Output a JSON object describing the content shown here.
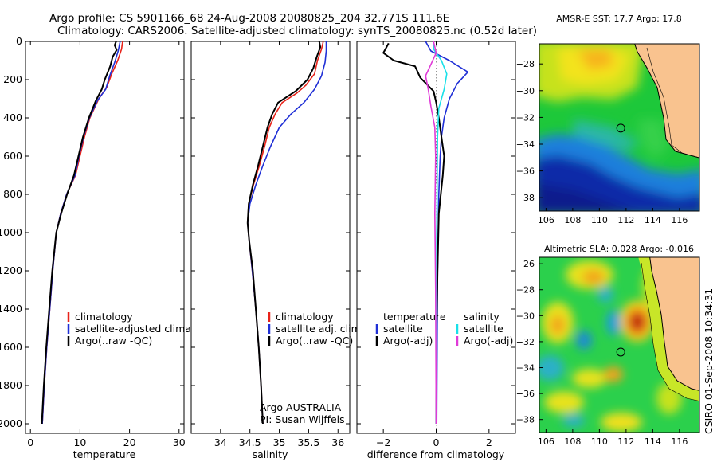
{
  "header": {
    "line1": "Argo profile: CS 5901166_68 24-Aug-2008 20080825_204 32.771S 111.6E",
    "line2": "Climatology: CARS2006. Satellite-adjusted climatology: synTS_20080825.nc (0.52d later)"
  },
  "side_label": "CSIRO 01-Sep-2008 10:34:31",
  "colors": {
    "climatology": "#e8231a",
    "satellite": "#1f2fd6",
    "argo": "#000000",
    "sal_satellite": "#18e0e8",
    "sal_argo": "#e03ad8",
    "land": "#f9c38f"
  },
  "chart_data": [
    {
      "type": "line",
      "xlabel": "temperature",
      "ylabel": "",
      "xlim": [
        -1,
        31
      ],
      "ylim": [
        2050,
        0
      ],
      "xticks": [
        0,
        10,
        20,
        30
      ],
      "yticks": [
        0,
        200,
        400,
        600,
        800,
        1000,
        1200,
        1400,
        1600,
        1800,
        2000
      ],
      "legend": [
        "climatology",
        "satellite-adjusted climatology",
        "Argo(..raw -QC)"
      ],
      "series": [
        {
          "key": "climatology",
          "points": [
            [
              18.6,
              0
            ],
            [
              18.4,
              40
            ],
            [
              17.6,
              100
            ],
            [
              16.4,
              170
            ],
            [
              15.4,
              240
            ],
            [
              13.8,
              300
            ],
            [
              12.0,
              400
            ],
            [
              10.9,
              500
            ],
            [
              10.0,
              600
            ],
            [
              9.1,
              700
            ],
            [
              7.3,
              800
            ],
            [
              6.1,
              900
            ],
            [
              5.2,
              1000
            ],
            [
              4.5,
              1200
            ],
            [
              3.9,
              1400
            ],
            [
              3.3,
              1600
            ],
            [
              2.8,
              1800
            ],
            [
              2.4,
              2000
            ]
          ]
        },
        {
          "key": "satellite",
          "points": [
            [
              18.1,
              0
            ],
            [
              17.7,
              50
            ],
            [
              17.0,
              110
            ],
            [
              16.0,
              180
            ],
            [
              15.2,
              250
            ],
            [
              13.5,
              310
            ],
            [
              11.9,
              400
            ],
            [
              10.7,
              500
            ],
            [
              9.8,
              600
            ],
            [
              9.0,
              700
            ],
            [
              7.3,
              800
            ],
            [
              6.1,
              900
            ],
            [
              5.2,
              1000
            ],
            [
              4.5,
              1200
            ],
            [
              3.9,
              1400
            ],
            [
              3.3,
              1600
            ],
            [
              2.8,
              1800
            ],
            [
              2.4,
              2000
            ]
          ]
        },
        {
          "key": "argo",
          "points": [
            [
              17.3,
              0
            ],
            [
              17.0,
              20
            ],
            [
              17.4,
              45
            ],
            [
              16.6,
              80
            ],
            [
              16.1,
              130
            ],
            [
              15.0,
              200
            ],
            [
              14.4,
              250
            ],
            [
              13.2,
              310
            ],
            [
              11.8,
              400
            ],
            [
              10.6,
              500
            ],
            [
              9.7,
              600
            ],
            [
              8.8,
              700
            ],
            [
              7.4,
              800
            ],
            [
              6.2,
              900
            ],
            [
              5.2,
              1000
            ],
            [
              4.4,
              1200
            ],
            [
              3.8,
              1400
            ],
            [
              3.2,
              1600
            ],
            [
              2.7,
              1800
            ],
            [
              2.3,
              2000
            ]
          ]
        }
      ]
    },
    {
      "type": "line",
      "xlabel": "salinity",
      "ylabel": "",
      "xlim": [
        33.5,
        36.2
      ],
      "ylim": [
        2050,
        0
      ],
      "xticks": [
        34,
        34.5,
        35,
        35.5,
        36
      ],
      "yticks": [
        0,
        200,
        400,
        600,
        800,
        1000,
        1200,
        1400,
        1600,
        1800,
        2000
      ],
      "legend": [
        "climatology",
        "satellite adj. clim.",
        "Argo(..raw -QC)"
      ],
      "annotation": [
        "Argo AUSTRALIA",
        "PI: Susan Wijffels"
      ],
      "series": [
        {
          "key": "climatology",
          "points": [
            [
              35.75,
              0
            ],
            [
              35.72,
              40
            ],
            [
              35.65,
              100
            ],
            [
              35.6,
              170
            ],
            [
              35.45,
              230
            ],
            [
              35.3,
              270
            ],
            [
              35.05,
              320
            ],
            [
              34.93,
              380
            ],
            [
              34.83,
              450
            ],
            [
              34.75,
              550
            ],
            [
              34.66,
              650
            ],
            [
              34.56,
              750
            ],
            [
              34.48,
              850
            ],
            [
              34.46,
              950
            ],
            [
              34.49,
              1050
            ],
            [
              34.54,
              1200
            ],
            [
              34.6,
              1400
            ],
            [
              34.65,
              1600
            ],
            [
              34.69,
              1800
            ],
            [
              34.72,
              2000
            ]
          ]
        },
        {
          "key": "satellite",
          "points": [
            [
              35.8,
              0
            ],
            [
              35.8,
              50
            ],
            [
              35.78,
              110
            ],
            [
              35.72,
              180
            ],
            [
              35.6,
              250
            ],
            [
              35.42,
              320
            ],
            [
              35.2,
              380
            ],
            [
              35.0,
              450
            ],
            [
              34.85,
              550
            ],
            [
              34.72,
              650
            ],
            [
              34.6,
              750
            ],
            [
              34.5,
              850
            ],
            [
              34.46,
              950
            ],
            [
              34.49,
              1050
            ],
            [
              34.54,
              1200
            ],
            [
              34.6,
              1400
            ],
            [
              34.65,
              1600
            ],
            [
              34.69,
              1800
            ],
            [
              34.72,
              2000
            ]
          ]
        },
        {
          "key": "argo",
          "points": [
            [
              35.68,
              0
            ],
            [
              35.7,
              30
            ],
            [
              35.64,
              80
            ],
            [
              35.58,
              140
            ],
            [
              35.48,
              200
            ],
            [
              35.28,
              260
            ],
            [
              34.98,
              320
            ],
            [
              34.88,
              380
            ],
            [
              34.8,
              450
            ],
            [
              34.72,
              550
            ],
            [
              34.64,
              650
            ],
            [
              34.55,
              750
            ],
            [
              34.48,
              850
            ],
            [
              34.46,
              950
            ],
            [
              34.49,
              1050
            ],
            [
              34.55,
              1200
            ],
            [
              34.6,
              1400
            ],
            [
              34.65,
              1600
            ],
            [
              34.69,
              1800
            ],
            [
              34.72,
              2000
            ]
          ]
        }
      ]
    },
    {
      "type": "line",
      "xlabel": "difference from climatology",
      "ylabel": "",
      "xlim": [
        -3,
        3
      ],
      "ylim": [
        2050,
        0
      ],
      "xticks": [
        -2,
        0,
        2
      ],
      "yticks": [
        0,
        200,
        400,
        600,
        800,
        1000,
        1200,
        1400,
        1600,
        1800,
        2000
      ],
      "legend_temperature": [
        "temperature",
        "satellite",
        "Argo(-adj)"
      ],
      "legend_salinity": [
        "salinity",
        "satellite",
        "Argo(-adj)"
      ],
      "series": [
        {
          "key": "temp_satellite",
          "points": [
            [
              -0.4,
              0
            ],
            [
              -0.2,
              50
            ],
            [
              0.5,
              100
            ],
            [
              1.2,
              160
            ],
            [
              0.8,
              220
            ],
            [
              0.5,
              300
            ],
            [
              0.3,
              400
            ],
            [
              0.2,
              500
            ],
            [
              0.15,
              600
            ],
            [
              0.1,
              800
            ],
            [
              0.05,
              1200
            ],
            [
              0.02,
              2000
            ]
          ]
        },
        {
          "key": "temp_argo",
          "points": [
            [
              -1.8,
              10
            ],
            [
              -2.0,
              60
            ],
            [
              -1.6,
              100
            ],
            [
              -0.8,
              130
            ],
            [
              -0.6,
              190
            ],
            [
              -0.1,
              260
            ],
            [
              0.0,
              320
            ],
            [
              0.1,
              400
            ],
            [
              0.2,
              500
            ],
            [
              0.3,
              600
            ],
            [
              0.25,
              700
            ],
            [
              0.1,
              900
            ],
            [
              0.05,
              1200
            ],
            [
              0.0,
              1600
            ],
            [
              0.0,
              2000
            ]
          ]
        },
        {
          "key": "sal_satellite",
          "points": [
            [
              -0.1,
              0
            ],
            [
              -0.1,
              40
            ],
            [
              0.2,
              100
            ],
            [
              0.4,
              170
            ],
            [
              0.3,
              250
            ],
            [
              0.1,
              350
            ],
            [
              0.05,
              500
            ],
            [
              0.02,
              1000
            ],
            [
              0.0,
              2000
            ]
          ]
        },
        {
          "key": "sal_argo",
          "points": [
            [
              -0.1,
              0
            ],
            [
              0.0,
              60
            ],
            [
              -0.2,
              120
            ],
            [
              -0.4,
              180
            ],
            [
              -0.3,
              250
            ],
            [
              -0.2,
              340
            ],
            [
              -0.05,
              450
            ],
            [
              -0.02,
              600
            ],
            [
              -0.05,
              900
            ],
            [
              -0.02,
              1300
            ],
            [
              0.0,
              2000
            ]
          ]
        }
      ]
    },
    {
      "type": "heatmap",
      "title": "AMSR-E SST: 17.7 Argo: 17.8",
      "xlim": [
        105.5,
        117.5
      ],
      "ylim": [
        -39,
        -26.5
      ],
      "xticks": [
        106,
        108,
        110,
        112,
        114,
        116
      ],
      "yticks": [
        -28,
        -30,
        -32,
        -34,
        -36,
        -38
      ],
      "marker": [
        111.6,
        -32.8
      ]
    },
    {
      "type": "heatmap",
      "title": "Altimetric SLA: 0.028 Argo: -0.016",
      "xlim": [
        105.5,
        117.5
      ],
      "ylim": [
        -39,
        -25.5
      ],
      "xticks": [
        106,
        108,
        110,
        112,
        114,
        116
      ],
      "yticks": [
        -26,
        -28,
        -30,
        -32,
        -34,
        -36,
        -38
      ],
      "marker": [
        111.6,
        -32.8
      ]
    }
  ]
}
